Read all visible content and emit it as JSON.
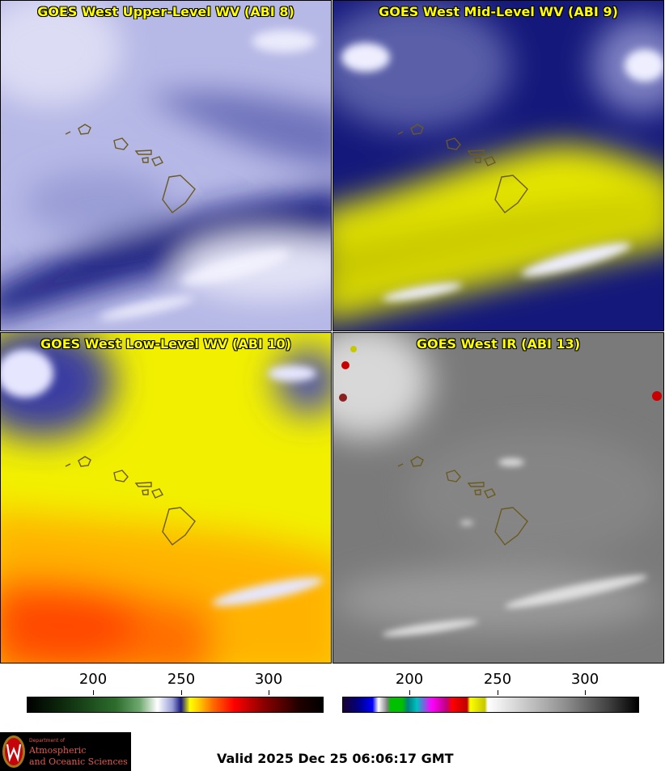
{
  "panels": [
    {
      "title": "GOES West Upper-Level WV (ABI 8)"
    },
    {
      "title": "GOES West Mid-Level WV (ABI 9)"
    },
    {
      "title": "GOES West Low-Level WV (ABI 10)"
    },
    {
      "title": "GOES West IR (ABI 13)"
    }
  ],
  "colorbars": {
    "wv": {
      "ticks": [
        "200",
        "250",
        "300"
      ]
    },
    "ir": {
      "ticks": [
        "200",
        "250",
        "300"
      ]
    }
  },
  "logo": {
    "line1": "Department of",
    "line2": "Atmospheric",
    "line3": "and Oceanic Sciences"
  },
  "valid_time": "Valid 2025 Dec 25 06:06:17 GMT"
}
